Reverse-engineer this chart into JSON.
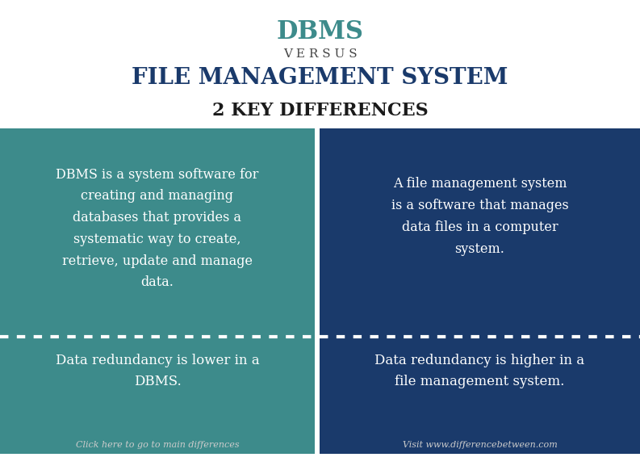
{
  "title_dbms": "DBMS",
  "title_versus": "V E R S U S",
  "title_fms": "FILE MANAGEMENT SYSTEM",
  "subtitle": "2 KEY DIFFERENCES",
  "left_color": "#3d8b8b",
  "right_color": "#1a3a6b",
  "bg_color": "#ffffff",
  "text_color_white": "#ffffff",
  "title_dbms_color": "#3d8b8b",
  "title_fms_color": "#1a3a6b",
  "title_versus_color": "#444444",
  "subtitle_color": "#1a1a1a",
  "left_text1": "DBMS is a system software for\ncreating and managing\ndatabases that provides a\nsystematic way to create,\nretrieve, update and manage\ndata.",
  "right_text1": "A file management system\nis a software that manages\ndata files in a computer\nsystem.",
  "left_text2": "Data redundancy is lower in a\nDBMS.",
  "right_text2": "Data redundancy is higher in a\nfile management system.",
  "left_footer": "Click here to go to main differences",
  "right_footer": "Visit www.differencebetween.com",
  "divider_color": "#ffffff",
  "footer_color": "#cccccc"
}
